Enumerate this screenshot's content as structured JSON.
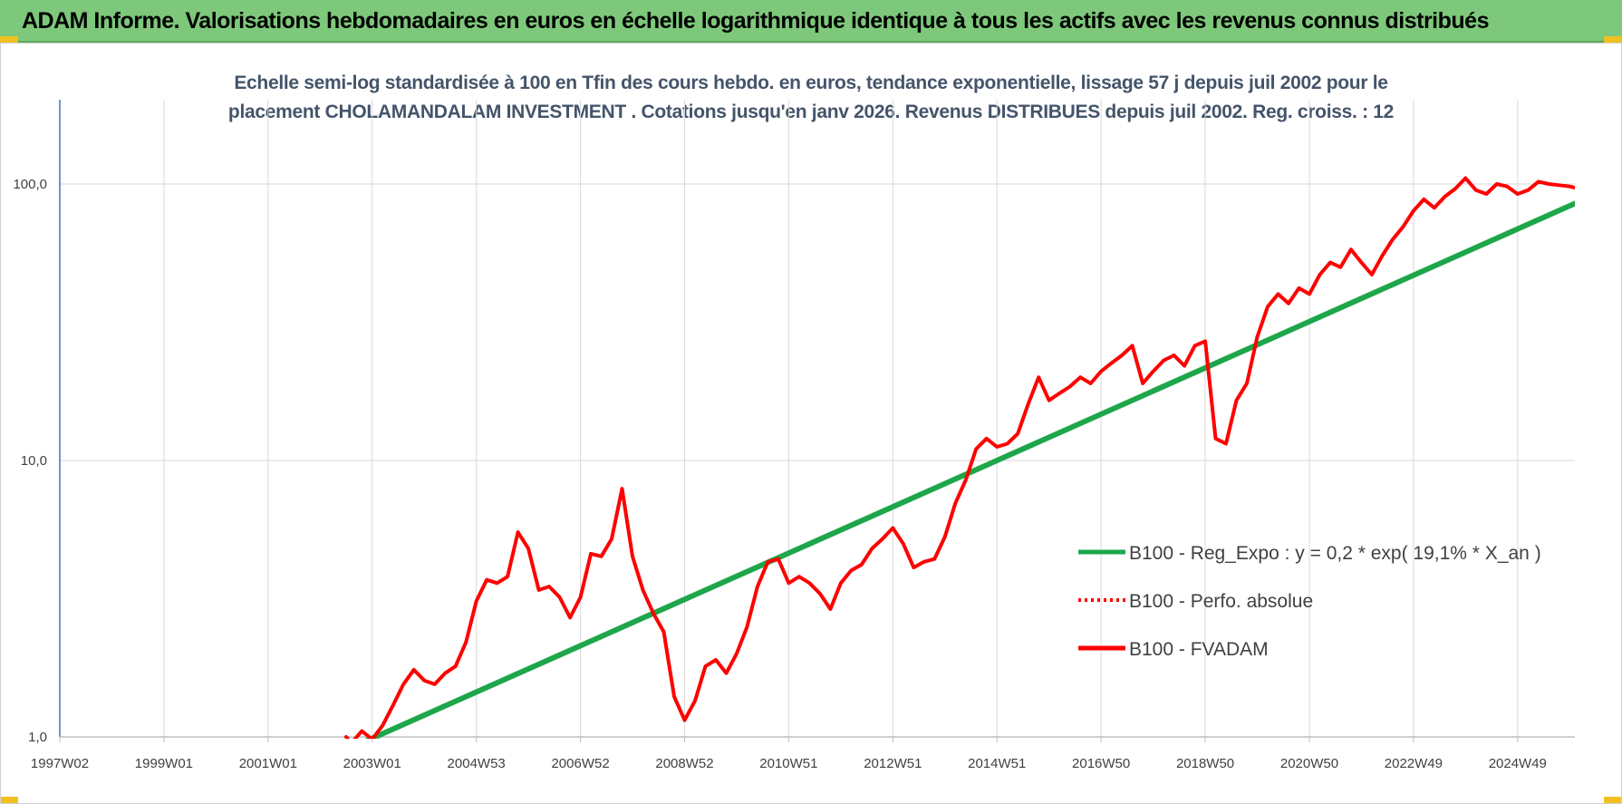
{
  "banner": {
    "title": "ADAM Informe. Valorisations hebdomadaires en euros en échelle logarithmique identique à tous les actifs avec les revenus connus distribués"
  },
  "chart_data": {
    "type": "line",
    "title_line1": "Echelle semi-log standardisée à 100 en Tfin des cours hebdo. en euros, tendance exponentielle, lissage 57 j depuis juil 2002 pour le",
    "title_line2": "placement CHOLAMANDALAM INVESTMENT . Cotations jusqu'en janv 2026. Revenus DISTRIBUES depuis juil 2002. Reg. croiss. : 12",
    "y_scale": "log",
    "ylim": [
      1,
      100
    ],
    "y_ticks": [
      1,
      10,
      100
    ],
    "y_tick_labels": [
      "1,0",
      "10,0",
      "100,0"
    ],
    "x_tick_labels": [
      "1997W02",
      "1999W01",
      "2001W01",
      "2003W01",
      "2004W53",
      "2006W52",
      "2008W52",
      "2010W51",
      "2012W51",
      "2014W51",
      "2016W50",
      "2018W50",
      "2020W50",
      "2022W49",
      "2024W49"
    ],
    "x_tick_years": [
      1997.0,
      1999.0,
      2001.0,
      2003.0,
      2005.0,
      2007.0,
      2009.0,
      2011.0,
      2013.0,
      2015.0,
      2017.0,
      2019.0,
      2021.0,
      2023.0,
      2025.0
    ],
    "xlim": [
      1997.0,
      2026.1
    ],
    "grid": true,
    "legend_position": "right",
    "series": [
      {
        "name": "B100 - Reg_Expo : y = 0,2 * exp( 19,1% *  X_an )",
        "color": "#1ea64a",
        "style": "solid",
        "x": [
          2002.85,
          2026.1
        ],
        "y": [
          0.96,
          85.0
        ]
      },
      {
        "name": "B100 - Perfo. absolue",
        "color": "#ff0000",
        "style": "dotted",
        "x": [],
        "y": []
      },
      {
        "name": "B100 - FVADAM",
        "color": "#ff0000",
        "style": "solid",
        "x": [
          2002.5,
          2002.6,
          2002.8,
          2003.0,
          2003.2,
          2003.4,
          2003.6,
          2003.8,
          2004.0,
          2004.2,
          2004.4,
          2004.6,
          2004.8,
          2005.0,
          2005.2,
          2005.4,
          2005.6,
          2005.8,
          2006.0,
          2006.2,
          2006.4,
          2006.6,
          2006.8,
          2007.0,
          2007.2,
          2007.4,
          2007.6,
          2007.8,
          2008.0,
          2008.2,
          2008.4,
          2008.6,
          2008.8,
          2009.0,
          2009.2,
          2009.4,
          2009.6,
          2009.8,
          2010.0,
          2010.2,
          2010.4,
          2010.6,
          2010.8,
          2011.0,
          2011.2,
          2011.4,
          2011.6,
          2011.8,
          2012.0,
          2012.2,
          2012.4,
          2012.6,
          2012.8,
          2013.0,
          2013.2,
          2013.4,
          2013.6,
          2013.8,
          2014.0,
          2014.2,
          2014.4,
          2014.6,
          2014.8,
          2015.0,
          2015.2,
          2015.4,
          2015.6,
          2015.8,
          2016.0,
          2016.2,
          2016.4,
          2016.6,
          2016.8,
          2017.0,
          2017.2,
          2017.4,
          2017.6,
          2017.8,
          2018.0,
          2018.2,
          2018.4,
          2018.6,
          2018.8,
          2019.0,
          2019.2,
          2019.4,
          2019.6,
          2019.8,
          2020.0,
          2020.2,
          2020.4,
          2020.6,
          2020.8,
          2021.0,
          2021.2,
          2021.4,
          2021.6,
          2021.8,
          2022.0,
          2022.2,
          2022.4,
          2022.6,
          2022.8,
          2023.0,
          2023.2,
          2023.4,
          2023.6,
          2023.8,
          2024.0,
          2024.2,
          2024.4,
          2024.6,
          2024.8,
          2025.0,
          2025.2,
          2025.4,
          2025.6,
          2025.8,
          2026.0,
          2026.1
        ],
        "y": [
          1.0,
          0.95,
          1.05,
          0.98,
          1.1,
          1.3,
          1.55,
          1.75,
          1.6,
          1.55,
          1.7,
          1.8,
          2.2,
          3.1,
          3.7,
          3.6,
          3.8,
          5.5,
          4.8,
          3.4,
          3.5,
          3.2,
          2.7,
          3.2,
          4.6,
          4.5,
          5.2,
          7.9,
          4.5,
          3.4,
          2.8,
          2.4,
          1.4,
          1.15,
          1.35,
          1.8,
          1.9,
          1.7,
          2.0,
          2.5,
          3.5,
          4.3,
          4.4,
          3.6,
          3.8,
          3.6,
          3.3,
          2.9,
          3.6,
          4.0,
          4.2,
          4.8,
          5.2,
          5.7,
          5.0,
          4.1,
          4.3,
          4.4,
          5.3,
          7.0,
          8.5,
          11.0,
          12.0,
          11.2,
          11.5,
          12.5,
          16.0,
          20.0,
          16.5,
          17.5,
          18.5,
          20.0,
          19.0,
          21.0,
          22.5,
          24.0,
          26.0,
          19.0,
          21.0,
          23.0,
          24.0,
          22.0,
          26.0,
          27.0,
          12.0,
          11.5,
          16.5,
          19.0,
          28.0,
          36.0,
          40.0,
          37.0,
          42.0,
          40.0,
          47.0,
          52.0,
          50.0,
          58.0,
          52.0,
          47.0,
          55.0,
          63.0,
          70.0,
          80.0,
          88.0,
          82.0,
          90.0,
          96.0,
          105.0,
          95.0,
          92.0,
          100.0,
          98.0,
          92.0,
          95.0,
          102.0,
          100.0,
          99.0,
          98.0,
          97.0
        ]
      }
    ]
  }
}
